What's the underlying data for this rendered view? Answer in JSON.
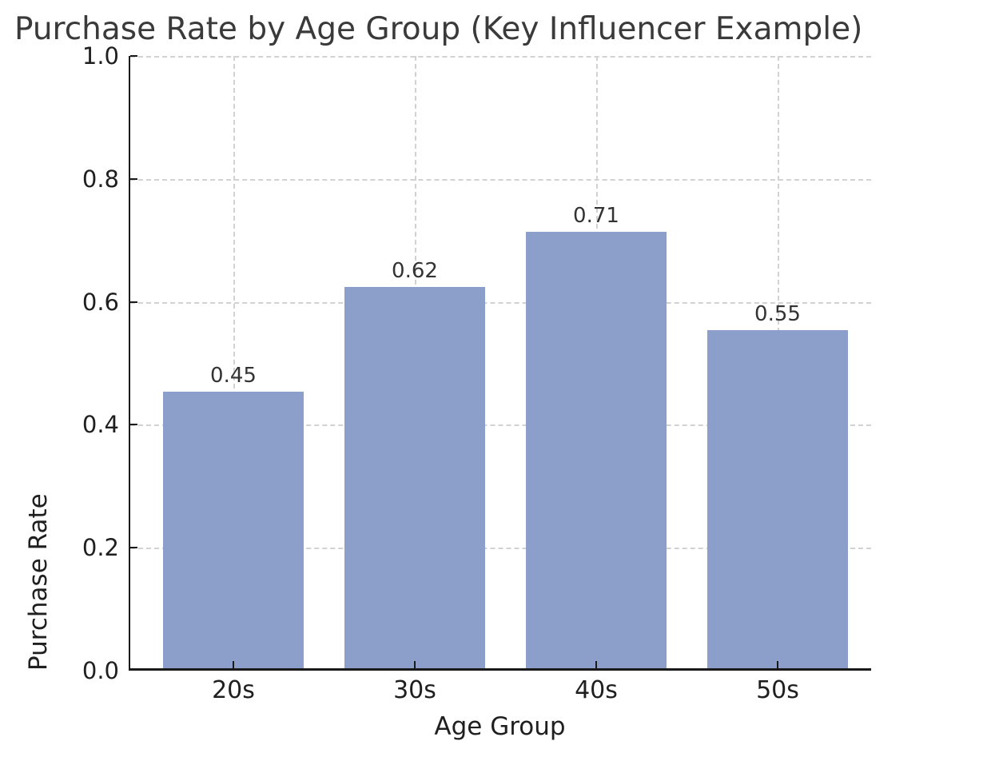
{
  "chart_data": {
    "type": "bar",
    "title": "Purchase Rate by Age Group (Key Influencer Example)",
    "xlabel": "Age Group",
    "ylabel": "Purchase Rate",
    "categories": [
      "20s",
      "30s",
      "40s",
      "50s"
    ],
    "values": [
      0.45,
      0.62,
      0.71,
      0.55
    ],
    "value_labels": [
      "0.45",
      "0.62",
      "0.71",
      "0.55"
    ],
    "ylim": [
      0.0,
      1.0
    ],
    "ytick_labels": [
      "0.0",
      "0.2",
      "0.4",
      "0.6",
      "0.8",
      "1.0"
    ],
    "ytick_values": [
      0.0,
      0.2,
      0.4,
      0.6,
      0.8,
      1.0
    ],
    "grid": "dashed, horizontal and vertical",
    "legend": "none",
    "bar_color": "#8c9fca",
    "grid_color": "#d2d2d2",
    "axis_color": "#1a1a1a",
    "text_color": "#1f1f1f"
  }
}
